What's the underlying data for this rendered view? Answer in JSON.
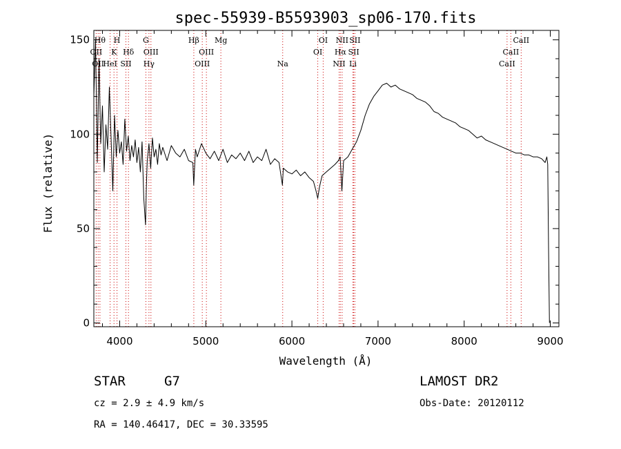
{
  "chart_data": {
    "type": "line",
    "title": "spec-55939-B5593903_sp06-170.fits",
    "xlabel": "Wavelength (Å)",
    "ylabel": "Flux (relative)",
    "xlim": [
      3700,
      9100
    ],
    "ylim": [
      -2,
      155
    ],
    "xticks": [
      {
        "value": 4000,
        "label": "4000"
      },
      {
        "value": 5000,
        "label": "5000"
      },
      {
        "value": 6000,
        "label": "6000"
      },
      {
        "value": 7000,
        "label": "7000"
      },
      {
        "value": 8000,
        "label": "8000"
      },
      {
        "value": 9000,
        "label": "9000"
      }
    ],
    "yticks": [
      {
        "value": 0,
        "label": "0"
      },
      {
        "value": 50,
        "label": "50"
      },
      {
        "value": 100,
        "label": "100"
      },
      {
        "value": 150,
        "label": "150"
      }
    ],
    "grid": false,
    "line_color": "#000000",
    "marker_color": "#cc0000",
    "series": [
      {
        "x": [
          3700,
          3720,
          3740,
          3760,
          3780,
          3800,
          3820,
          3840,
          3860,
          3880,
          3900,
          3920,
          3940,
          3960,
          3980,
          4000,
          4020,
          4040,
          4060,
          4080,
          4100,
          4120,
          4140,
          4160,
          4180,
          4200,
          4220,
          4240,
          4260,
          4280,
          4300,
          4310,
          4320,
          4340,
          4360,
          4380,
          4400,
          4420,
          4440,
          4460,
          4480,
          4500,
          4550,
          4600,
          4650,
          4700,
          4750,
          4800,
          4850,
          4860,
          4880,
          4900,
          4950,
          5000,
          5050,
          5100,
          5150,
          5200,
          5250,
          5300,
          5350,
          5400,
          5450,
          5500,
          5550,
          5600,
          5650,
          5700,
          5750,
          5800,
          5850,
          5890,
          5900,
          5950,
          6000,
          6050,
          6100,
          6150,
          6200,
          6250,
          6280,
          6300,
          6320,
          6350,
          6400,
          6450,
          6500,
          6540,
          6560,
          6580,
          6600,
          6650,
          6700,
          6750,
          6800,
          6850,
          6900,
          6950,
          7000,
          7050,
          7100,
          7150,
          7200,
          7250,
          7300,
          7350,
          7400,
          7450,
          7500,
          7550,
          7600,
          7650,
          7700,
          7750,
          7800,
          7850,
          7900,
          7950,
          8000,
          8050,
          8100,
          8150,
          8200,
          8250,
          8300,
          8350,
          8400,
          8450,
          8500,
          8550,
          8600,
          8650,
          8700,
          8750,
          8800,
          8850,
          8900,
          8920,
          8940,
          8960,
          8970,
          8980,
          8990
        ],
        "y": [
          120,
          150,
          85,
          140,
          95,
          115,
          80,
          105,
          92,
          125,
          98,
          70,
          110,
          88,
          102,
          90,
          96,
          84,
          108,
          91,
          99,
          86,
          94,
          88,
          97,
          85,
          93,
          80,
          96,
          66,
          52,
          72,
          86,
          95,
          82,
          98,
          88,
          92,
          84,
          95,
          89,
          93,
          86,
          94,
          90,
          88,
          92,
          86,
          85,
          73,
          92,
          88,
          95,
          90,
          87,
          91,
          86,
          92,
          85,
          89,
          87,
          90,
          86,
          91,
          85,
          88,
          86,
          92,
          84,
          87,
          85,
          73,
          82,
          80,
          79,
          81,
          78,
          80,
          77,
          75,
          70,
          66,
          72,
          78,
          80,
          82,
          84,
          86,
          88,
          70,
          86,
          88,
          92,
          96,
          102,
          110,
          116,
          120,
          123,
          126,
          127,
          125,
          126,
          124,
          123,
          122,
          121,
          119,
          118,
          117,
          115,
          112,
          111,
          109,
          108,
          107,
          106,
          104,
          103,
          102,
          100,
          98,
          99,
          97,
          96,
          95,
          94,
          93,
          92,
          91,
          90,
          90,
          89,
          89,
          88,
          88,
          87,
          86,
          85,
          88,
          84,
          40,
          0
        ]
      }
    ],
    "line_markers": [
      {
        "wavelength": 3727,
        "label": "OII",
        "row": 2
      },
      {
        "wavelength": 3750,
        "label": "OII",
        "row": 3
      },
      {
        "wavelength": 3771,
        "label": "Hθ",
        "row": 1
      },
      {
        "wavelength": 3934,
        "label": "K",
        "row": 2
      },
      {
        "wavelength": 3889,
        "label": "HeI",
        "row": 3
      },
      {
        "wavelength": 3969,
        "label": "H",
        "row": 1
      },
      {
        "wavelength": 4072,
        "label": "SII",
        "row": 3
      },
      {
        "wavelength": 4102,
        "label": "Hδ",
        "row": 2
      },
      {
        "wavelength": 4304,
        "label": "G",
        "row": 1
      },
      {
        "wavelength": 4340,
        "label": "Hγ",
        "row": 3
      },
      {
        "wavelength": 4363,
        "label": "OIII",
        "row": 2
      },
      {
        "wavelength": 4861,
        "label": "Hβ",
        "row": 1
      },
      {
        "wavelength": 4959,
        "label": "OIII",
        "row": 3
      },
      {
        "wavelength": 5007,
        "label": "OIII",
        "row": 2
      },
      {
        "wavelength": 5175,
        "label": "Mg",
        "row": 1
      },
      {
        "wavelength": 5893,
        "label": "Na",
        "row": 3
      },
      {
        "wavelength": 6300,
        "label": "OI",
        "row": 2
      },
      {
        "wavelength": 6363,
        "label": "OI",
        "row": 1
      },
      {
        "wavelength": 6548,
        "label": "NII",
        "row": 3
      },
      {
        "wavelength": 6563,
        "label": "Hα",
        "row": 2
      },
      {
        "wavelength": 6583,
        "label": "NII",
        "row": 1
      },
      {
        "wavelength": 6708,
        "label": "Li",
        "row": 3
      },
      {
        "wavelength": 6717,
        "label": "SII",
        "row": 2
      },
      {
        "wavelength": 6731,
        "label": "SII",
        "row": 1
      },
      {
        "wavelength": 8498,
        "label": "CaII",
        "row": 3
      },
      {
        "wavelength": 8542,
        "label": "CaII",
        "row": 2
      },
      {
        "wavelength": 8662,
        "label": "CaII",
        "row": 1
      }
    ]
  },
  "info": {
    "object_class": "STAR",
    "subclass": "G7",
    "survey": "LAMOST DR2",
    "redshift_text": "cz = 2.9 ± 4.9 km/s",
    "obs_date_text": "Obs-Date: 20120112",
    "coords_text": "RA = 140.46417, DEC =  30.33595"
  }
}
